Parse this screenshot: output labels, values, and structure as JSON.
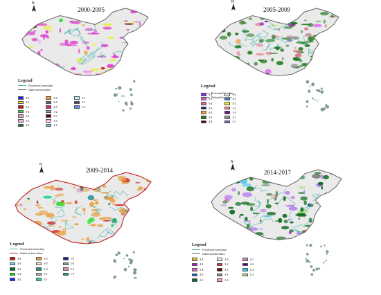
{
  "legend_title": "Legend",
  "provincial_label": "Provincial boundary",
  "national_label": "National boundary",
  "north_label": "N",
  "colors": {
    "provincial": "#4fb6b0",
    "national": "#6e6e6e",
    "base": "#eaeaea",
    "islands": "#7d9a98"
  },
  "panels": [
    {
      "id": "p1",
      "title": "2000-2005",
      "dominant_color": "#e040d0",
      "secondary_color": "#e8f040",
      "items": [
        {
          "label": "4-3",
          "color": "#1a1aff"
        },
        {
          "label": "3-4",
          "color": "#e8f020"
        },
        {
          "label": "4-5",
          "color": "#c01818"
        },
        {
          "label": "5-4",
          "color": "#3adb3a"
        },
        {
          "label": "2-4",
          "color": "#f09ac0"
        },
        {
          "label": "2-3",
          "color": "#f0b0d8"
        },
        {
          "label": "4-2",
          "color": "#0c6a2c"
        },
        {
          "label": "3-2",
          "color": "#f0a020"
        },
        {
          "label": "3-5",
          "color": "#606060"
        },
        {
          "label": "2-5",
          "color": "#e02090"
        },
        {
          "label": "1-2",
          "color": "#a0a0a0"
        },
        {
          "label": "5-3",
          "color": "#5a0a0a"
        },
        {
          "label": "1-3",
          "color": "#f0c0f0"
        },
        {
          "label": "2-1",
          "color": "#60d8d0"
        },
        {
          "label": "3-1",
          "color": "#c0f0f0"
        },
        {
          "label": "4-1",
          "color": "#404080"
        },
        {
          "label": "1-4",
          "color": "#6090f0"
        }
      ]
    },
    {
      "id": "p2",
      "title": "2005-2009",
      "dominant_color": "#1d7a1d",
      "secondary_color": "#e07a8a",
      "items": [
        {
          "label": "3-4",
          "color": "#8a2be2"
        },
        {
          "label": "4-3",
          "color": "#e060f0"
        },
        {
          "label": "5-4",
          "color": "#e06090"
        },
        {
          "label": "5-3",
          "color": "#102070"
        },
        {
          "label": "4-5",
          "color": "#e8a040"
        },
        {
          "label": "2-3",
          "color": "#1a7a1a"
        },
        {
          "label": "2-4",
          "color": "#4a0a0a"
        },
        {
          "label": "3-2",
          "color": "#e8e8f0"
        },
        {
          "label": "4-2",
          "color": "#2080c0"
        },
        {
          "label": "3-2",
          "color": "#e8f020"
        },
        {
          "label": "1-2",
          "color": "#f08080"
        },
        {
          "label": "1-3",
          "color": "#7a1080"
        },
        {
          "label": "2-1",
          "color": "#909090"
        },
        {
          "label": "3-1",
          "color": "#6060c0"
        }
      ]
    },
    {
      "id": "p3",
      "title": "2009-2014",
      "dominant_color": "#e8a040",
      "secondary_color": "#d02020",
      "items": [
        {
          "label": "3-4",
          "color": "#d01010"
        },
        {
          "label": "4-3",
          "color": "#70c8f0"
        },
        {
          "label": "4-5",
          "color": "#0a6a2a"
        },
        {
          "label": "5-4",
          "color": "#10e010"
        },
        {
          "label": "4-2",
          "color": "#1030f0"
        },
        {
          "label": "3-2",
          "color": "#e8a040"
        },
        {
          "label": "3-5",
          "color": "#f0e0c0"
        },
        {
          "label": "2-3",
          "color": "#209090"
        },
        {
          "label": "3-1",
          "color": "#b0b0b0"
        },
        {
          "label": "2-1",
          "color": "#30d0a0"
        },
        {
          "label": "1-2",
          "color": "#1a2a80"
        },
        {
          "label": "2-4",
          "color": "#909090"
        },
        {
          "label": "5-3",
          "color": "#e090c0"
        },
        {
          "label": "1-3",
          "color": "#10a050"
        }
      ]
    },
    {
      "id": "p4",
      "title": "2014-2017",
      "dominant_color": "#0a6a1a",
      "secondary_color": "#b070f0",
      "items": [
        {
          "label": "3-4",
          "color": "#f0b040"
        },
        {
          "label": "4-3",
          "color": "#a020d0"
        },
        {
          "label": "5-4",
          "color": "#e060b0"
        },
        {
          "label": "4-5",
          "color": "#2050d0"
        },
        {
          "label": "2-3",
          "color": "#0a6a1a"
        },
        {
          "label": "2-4",
          "color": "#f0f0f0"
        },
        {
          "label": "3-2",
          "color": "#f03030"
        },
        {
          "label": "3-5",
          "color": "#5a0a0a"
        },
        {
          "label": "3-1",
          "color": "#808080"
        },
        {
          "label": "1-3",
          "color": "#f0a0a0"
        },
        {
          "label": "2-1",
          "color": "#d080c0"
        },
        {
          "label": "4-2",
          "color": "#600080"
        },
        {
          "label": "1-4",
          "color": "#30c0f0"
        },
        {
          "label": "1-2",
          "color": "#a0e070"
        }
      ]
    }
  ]
}
